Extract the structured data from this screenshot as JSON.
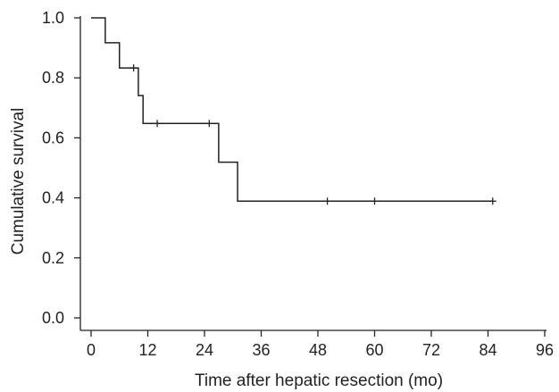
{
  "chart_data": {
    "type": "line",
    "xlabel": "Time after hepatic resection (mo)",
    "ylabel": "Cumulative survival",
    "xlim": [
      0,
      96
    ],
    "ylim": [
      0.0,
      1.0
    ],
    "xticks": [
      0,
      12,
      24,
      36,
      48,
      60,
      72,
      84,
      96
    ],
    "yticks": [
      0.0,
      0.2,
      0.4,
      0.6,
      0.8,
      1.0
    ],
    "xtick_labels": [
      "0",
      "12",
      "24",
      "36",
      "48",
      "60",
      "72",
      "84",
      "96"
    ],
    "ytick_labels": [
      "0.0",
      "0.2",
      "0.4",
      "0.6",
      "0.8",
      "1.0"
    ],
    "grid": false,
    "line_color": "#222222",
    "series": [
      {
        "step": "post",
        "x": [
          0,
          3,
          6,
          10,
          11,
          12,
          27,
          31,
          85
        ],
        "y": [
          1.0,
          0.917,
          0.833,
          0.741,
          0.648,
          0.648,
          0.519,
          0.389,
          0.389
        ],
        "censored": [
          {
            "x": 9,
            "y": 0.833
          },
          {
            "x": 14,
            "y": 0.648
          },
          {
            "x": 25,
            "y": 0.648
          },
          {
            "x": 50,
            "y": 0.389
          },
          {
            "x": 60,
            "y": 0.389
          },
          {
            "x": 85,
            "y": 0.389
          }
        ]
      }
    ]
  }
}
